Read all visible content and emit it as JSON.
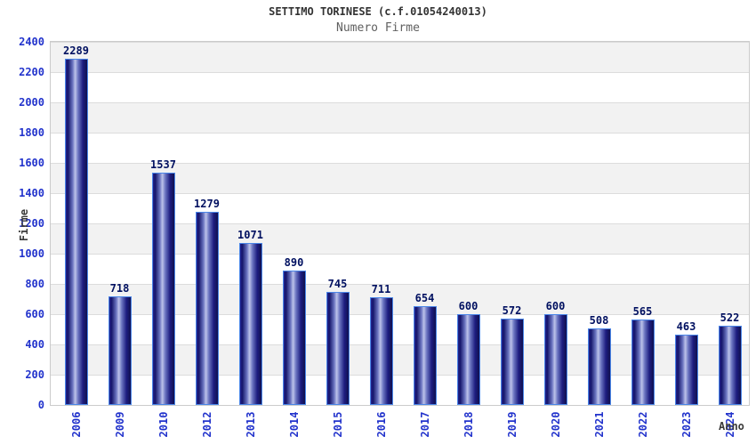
{
  "header": {
    "title": "SETTIMO TORINESE (c.f.01054240013)",
    "subtitle": "Numero Firme"
  },
  "axes": {
    "y_title": "Firme",
    "x_title": "Anno"
  },
  "colors": {
    "tick_label_blue": "#2233cc",
    "value_label_navy": "#001060",
    "title_gray": "#333333",
    "subtitle_gray": "#606060",
    "band_gray": "#f2f2f2",
    "band_white": "#ffffff",
    "grid_line": "#dcdcdc",
    "plot_border": "#cbcbcb",
    "bar_border_light_blue": "#4a86e8",
    "bar_dark_navy": "#10104f",
    "bar_mid_blue": "#6a74c0",
    "bar_highlight": "#bdc3ea"
  },
  "chart_data": {
    "type": "bar",
    "title": "SETTIMO TORINESE (c.f.01054240013)",
    "subtitle": "Numero Firme",
    "xlabel": "Anno",
    "ylabel": "Firme",
    "categories": [
      "2006",
      "2009",
      "2010",
      "2012",
      "2013",
      "2014",
      "2015",
      "2016",
      "2017",
      "2018",
      "2019",
      "2020",
      "2021",
      "2022",
      "2023",
      "2024"
    ],
    "values": [
      2289,
      718,
      1537,
      1279,
      1071,
      890,
      745,
      711,
      654,
      600,
      572,
      600,
      508,
      565,
      463,
      522
    ],
    "ylim": [
      0,
      2400
    ],
    "ytick_step": 200,
    "grid": "horizontal alternating bands every 200 units",
    "legend_position": "none",
    "bar_labels_shown": true,
    "x_tick_rotation_deg": -90
  }
}
